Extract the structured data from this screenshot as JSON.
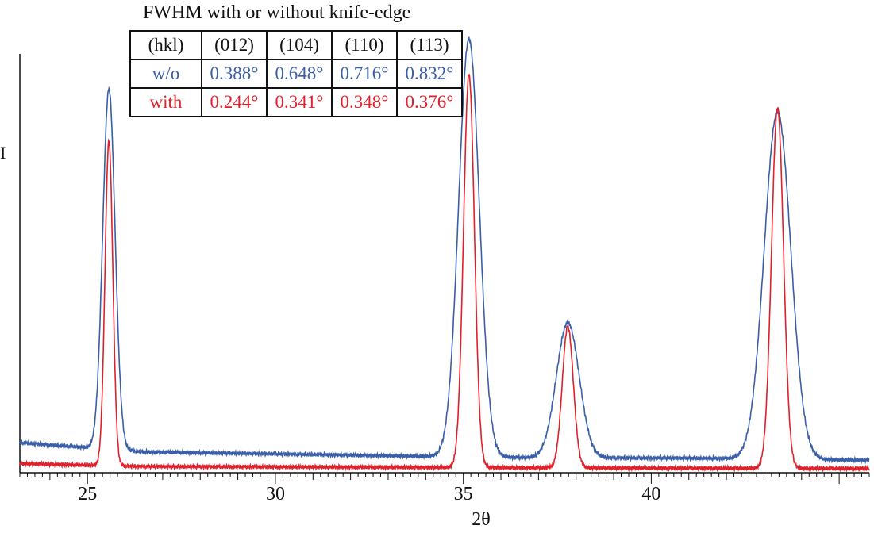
{
  "chart_data": {
    "type": "line",
    "title": "",
    "xlabel": "2θ",
    "ylabel": "I",
    "xlim": [
      23.2,
      45.8
    ],
    "ylim": [
      0,
      1.08
    ],
    "grid": false,
    "legend": "none",
    "x_ticks": [
      25,
      30,
      35,
      40
    ],
    "series": [
      {
        "name": "w/o",
        "color": "#3a5fa8",
        "baseline": [
          [
            23.2,
            0.072
          ],
          [
            26.5,
            0.05
          ],
          [
            33.5,
            0.04
          ],
          [
            36.8,
            0.036
          ],
          [
            41.0,
            0.035
          ],
          [
            45.8,
            0.03
          ]
        ],
        "peaks": [
          {
            "center": 25.57,
            "height": 0.92,
            "width": 0.388
          },
          {
            "center": 35.15,
            "height": 1.04,
            "width": 0.648
          },
          {
            "center": 37.78,
            "height": 0.36,
            "width": 0.716
          },
          {
            "center": 43.36,
            "height": 0.865,
            "width": 0.832
          }
        ]
      },
      {
        "name": "with",
        "color": "#e0202a",
        "baseline": [
          [
            23.2,
            0.022
          ],
          [
            26.5,
            0.015
          ],
          [
            36.8,
            0.012
          ],
          [
            45.8,
            0.01
          ]
        ],
        "peaks": [
          {
            "center": 25.57,
            "height": 0.795,
            "width": 0.244
          },
          {
            "center": 35.15,
            "height": 0.955,
            "width": 0.341
          },
          {
            "center": 37.78,
            "height": 0.35,
            "width": 0.348
          },
          {
            "center": 43.36,
            "height": 0.875,
            "width": 0.376
          }
        ]
      }
    ]
  },
  "table": {
    "title": "FWHM with or without knife-edge",
    "header": [
      "(hkl)",
      "(012)",
      "(104)",
      "(110)",
      "(113)"
    ],
    "rows": [
      {
        "label": "w/o",
        "color": "#3a5fa8",
        "values": [
          "0.388°",
          "0.648°",
          "0.716°",
          "0.832°"
        ]
      },
      {
        "label": "with",
        "color": "#e0202a",
        "values": [
          "0.244°",
          "0.341°",
          "0.348°",
          "0.376°"
        ]
      }
    ]
  }
}
